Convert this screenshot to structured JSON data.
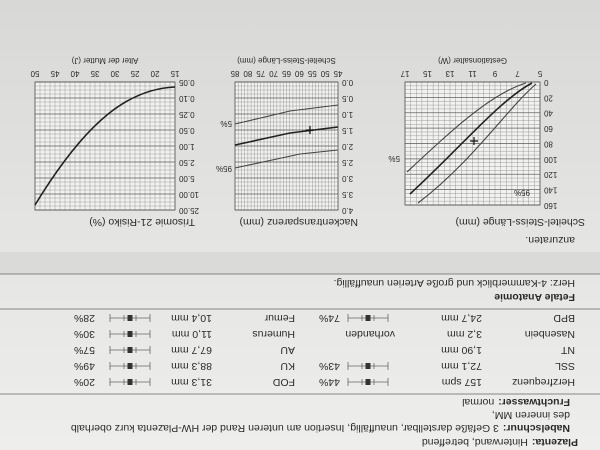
{
  "report": {
    "placenta_label": "Plazenta:",
    "placenta_text": "Hinterwand, betreffend",
    "umbilical_label": "Nabelschnur:",
    "umbilical_text": "3 Gefäße darstellbar, unauffällig, Insertion am unteren Rand der HW-Plazenta kurz oberhalb",
    "umbilical_text_2": "des inneren MM,",
    "amniotic_label": "Fruchtwasser:",
    "amniotic_text": "normal"
  },
  "measurements": [
    {
      "left": {
        "label": "Herzfrequenz",
        "value": "157 spm",
        "percent": "44%"
      },
      "right": {
        "label": "FOD",
        "value": "31,3 mm",
        "percent": "20%"
      }
    },
    {
      "left": {
        "label": "SSL",
        "value": "72,1 mm",
        "percent": "43%"
      },
      "right": {
        "label": "KU",
        "value": "88,3 mm",
        "percent": "49%"
      }
    },
    {
      "left": {
        "label": "NT",
        "value": "1,90 mm"
      },
      "right": {
        "label": "AU",
        "value": "67,7 mm",
        "percent": "57%"
      }
    },
    {
      "left": {
        "label": "Nasenbein",
        "value": "3,2 mm",
        "extra": "vorhanden"
      },
      "right": {
        "label": "Humerus",
        "value": "11,0 mm",
        "percent": "30%"
      }
    },
    {
      "left": {
        "label": "BPD",
        "value": "24,7 mm",
        "percent": "74%"
      },
      "right": {
        "label": "Femur",
        "value": "10,4 mm",
        "percent": "28%"
      }
    }
  ],
  "anatomy": {
    "heading": "Fetale Anatomie",
    "heart": "Herz: 4-Kammerblick und große Arterien unauffällig."
  },
  "note": "anzuraten.",
  "charts": [
    {
      "title": "Scheitel-Steiss-Länge (mm)",
      "x_label": "Gestationsalter (W)",
      "y_ticks": [
        "0",
        "20",
        "40",
        "60",
        "80",
        "100",
        "120",
        "140",
        "160"
      ],
      "x_ticks": [
        "5",
        "7",
        "9",
        "11",
        "13",
        "15",
        "17"
      ],
      "percentile_labels": [
        "5%",
        "95%"
      ]
    },
    {
      "title": "Nackentransparenz (mm)",
      "x_label": "Scheitel-Steiss-Länge (mm)",
      "y_ticks": [
        "0.0",
        "0.5",
        "1.0",
        "1.5",
        "2.0",
        "2.5",
        "3.0",
        "3.5",
        "4.0"
      ],
      "x_ticks": [
        "45",
        "50",
        "55",
        "60",
        "65",
        "70",
        "75",
        "80",
        "85"
      ],
      "percentile_labels": [
        "5%",
        "95%"
      ]
    },
    {
      "title": "Trisomie 21-Risiko (%)",
      "x_label": "Alter der Mutter (J)",
      "y_ticks": [
        "0.05",
        "0.10",
        "0.25",
        "0.50",
        "1.00",
        "2.50",
        "5.00",
        "10.00",
        "25.00"
      ],
      "x_ticks": [
        "15",
        "20",
        "25",
        "30",
        "35",
        "40",
        "45",
        "50"
      ]
    }
  ]
}
